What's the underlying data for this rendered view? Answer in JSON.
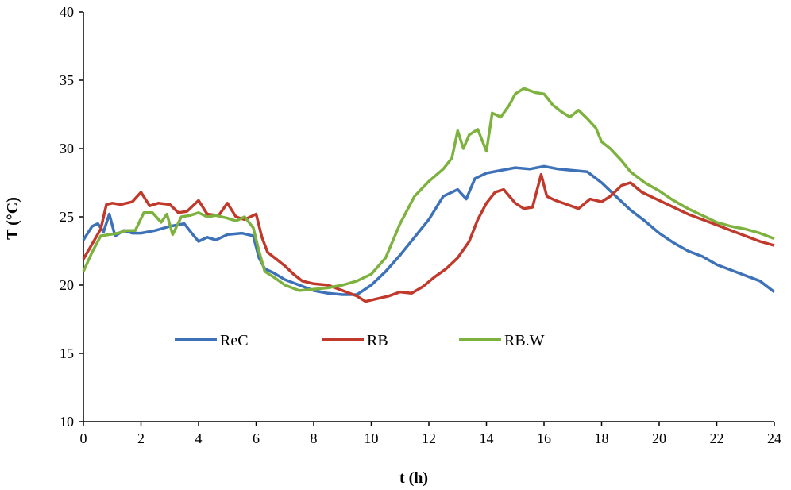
{
  "chart_data": {
    "type": "line",
    "xlabel": "t (h)",
    "ylabel": "T (°C)",
    "xlim": [
      0,
      24
    ],
    "ylim": [
      10,
      40
    ],
    "xticks": [
      0,
      2,
      4,
      6,
      8,
      10,
      12,
      14,
      16,
      18,
      20,
      22,
      24
    ],
    "yticks": [
      10,
      15,
      20,
      25,
      30,
      35,
      40
    ],
    "grid": false,
    "legend_position": "lower-center (inside plot)",
    "series": [
      {
        "name": "ReC",
        "color": "#3d72b8",
        "points": [
          [
            0,
            23.3
          ],
          [
            0.3,
            24.3
          ],
          [
            0.5,
            24.5
          ],
          [
            0.7,
            23.9
          ],
          [
            0.9,
            25.2
          ],
          [
            1.1,
            23.6
          ],
          [
            1.4,
            24.0
          ],
          [
            1.7,
            23.8
          ],
          [
            2.0,
            23.8
          ],
          [
            2.5,
            24.0
          ],
          [
            3.0,
            24.3
          ],
          [
            3.5,
            24.5
          ],
          [
            3.8,
            23.7
          ],
          [
            4.0,
            23.2
          ],
          [
            4.3,
            23.5
          ],
          [
            4.6,
            23.3
          ],
          [
            5.0,
            23.7
          ],
          [
            5.5,
            23.8
          ],
          [
            5.9,
            23.6
          ],
          [
            6.1,
            22.0
          ],
          [
            6.3,
            21.2
          ],
          [
            6.6,
            20.9
          ],
          [
            7.0,
            20.4
          ],
          [
            7.5,
            20.0
          ],
          [
            8.0,
            19.6
          ],
          [
            8.5,
            19.4
          ],
          [
            9.0,
            19.3
          ],
          [
            9.5,
            19.3
          ],
          [
            10.0,
            20.0
          ],
          [
            10.5,
            21.0
          ],
          [
            11.0,
            22.2
          ],
          [
            11.5,
            23.5
          ],
          [
            12.0,
            24.8
          ],
          [
            12.5,
            26.5
          ],
          [
            13.0,
            27.0
          ],
          [
            13.3,
            26.3
          ],
          [
            13.6,
            27.8
          ],
          [
            14.0,
            28.2
          ],
          [
            14.5,
            28.4
          ],
          [
            15.0,
            28.6
          ],
          [
            15.5,
            28.5
          ],
          [
            16.0,
            28.7
          ],
          [
            16.5,
            28.5
          ],
          [
            17.0,
            28.4
          ],
          [
            17.5,
            28.3
          ],
          [
            18.0,
            27.5
          ],
          [
            18.5,
            26.5
          ],
          [
            19.0,
            25.5
          ],
          [
            19.5,
            24.7
          ],
          [
            20.0,
            23.8
          ],
          [
            20.5,
            23.1
          ],
          [
            21.0,
            22.5
          ],
          [
            21.5,
            22.1
          ],
          [
            22.0,
            21.5
          ],
          [
            22.5,
            21.1
          ],
          [
            23.0,
            20.7
          ],
          [
            23.5,
            20.3
          ],
          [
            24.0,
            19.5
          ]
        ]
      },
      {
        "name": "RB",
        "color": "#c0392b",
        "points": [
          [
            0,
            21.9
          ],
          [
            0.3,
            23.0
          ],
          [
            0.6,
            24.1
          ],
          [
            0.8,
            25.9
          ],
          [
            1.0,
            26.0
          ],
          [
            1.3,
            25.9
          ],
          [
            1.7,
            26.1
          ],
          [
            2.0,
            26.8
          ],
          [
            2.3,
            25.8
          ],
          [
            2.6,
            26.0
          ],
          [
            3.0,
            25.9
          ],
          [
            3.3,
            25.3
          ],
          [
            3.6,
            25.4
          ],
          [
            4.0,
            26.2
          ],
          [
            4.3,
            25.2
          ],
          [
            4.7,
            25.1
          ],
          [
            5.0,
            26.0
          ],
          [
            5.3,
            25.0
          ],
          [
            5.6,
            24.8
          ],
          [
            6.0,
            25.2
          ],
          [
            6.2,
            23.5
          ],
          [
            6.4,
            22.4
          ],
          [
            6.7,
            21.9
          ],
          [
            7.0,
            21.4
          ],
          [
            7.3,
            20.8
          ],
          [
            7.6,
            20.3
          ],
          [
            8.0,
            20.1
          ],
          [
            8.5,
            20.0
          ],
          [
            9.0,
            19.6
          ],
          [
            9.5,
            19.2
          ],
          [
            9.8,
            18.8
          ],
          [
            10.2,
            19.0
          ],
          [
            10.6,
            19.2
          ],
          [
            11.0,
            19.5
          ],
          [
            11.4,
            19.4
          ],
          [
            11.8,
            19.9
          ],
          [
            12.2,
            20.6
          ],
          [
            12.6,
            21.2
          ],
          [
            13.0,
            22.0
          ],
          [
            13.4,
            23.2
          ],
          [
            13.7,
            24.8
          ],
          [
            14.0,
            26.0
          ],
          [
            14.3,
            26.8
          ],
          [
            14.6,
            27.0
          ],
          [
            15.0,
            26.0
          ],
          [
            15.3,
            25.6
          ],
          [
            15.6,
            25.7
          ],
          [
            15.9,
            28.1
          ],
          [
            16.1,
            26.5
          ],
          [
            16.4,
            26.2
          ],
          [
            16.8,
            25.9
          ],
          [
            17.2,
            25.6
          ],
          [
            17.6,
            26.3
          ],
          [
            18.0,
            26.1
          ],
          [
            18.3,
            26.5
          ],
          [
            18.7,
            27.3
          ],
          [
            19.0,
            27.5
          ],
          [
            19.4,
            26.8
          ],
          [
            19.8,
            26.4
          ],
          [
            20.2,
            26.0
          ],
          [
            20.6,
            25.6
          ],
          [
            21.0,
            25.2
          ],
          [
            21.5,
            24.8
          ],
          [
            22.0,
            24.4
          ],
          [
            22.5,
            24.0
          ],
          [
            23.0,
            23.6
          ],
          [
            23.5,
            23.2
          ],
          [
            24.0,
            22.9
          ]
        ]
      },
      {
        "name": "RB.W",
        "color": "#7db23e",
        "points": [
          [
            0,
            21.0
          ],
          [
            0.3,
            22.4
          ],
          [
            0.6,
            23.6
          ],
          [
            0.9,
            23.7
          ],
          [
            1.2,
            23.8
          ],
          [
            1.5,
            24.0
          ],
          [
            1.8,
            24.0
          ],
          [
            2.1,
            25.3
          ],
          [
            2.4,
            25.3
          ],
          [
            2.7,
            24.6
          ],
          [
            2.9,
            25.2
          ],
          [
            3.1,
            23.7
          ],
          [
            3.4,
            25.0
          ],
          [
            3.7,
            25.1
          ],
          [
            4.0,
            25.3
          ],
          [
            4.3,
            25.0
          ],
          [
            4.6,
            25.1
          ],
          [
            5.0,
            24.9
          ],
          [
            5.3,
            24.7
          ],
          [
            5.6,
            25.0
          ],
          [
            5.9,
            24.2
          ],
          [
            6.1,
            22.5
          ],
          [
            6.3,
            21.0
          ],
          [
            6.6,
            20.6
          ],
          [
            7.0,
            20.0
          ],
          [
            7.5,
            19.6
          ],
          [
            8.0,
            19.7
          ],
          [
            8.5,
            19.8
          ],
          [
            9.0,
            20.0
          ],
          [
            9.5,
            20.3
          ],
          [
            10.0,
            20.8
          ],
          [
            10.5,
            22.0
          ],
          [
            11.0,
            24.5
          ],
          [
            11.5,
            26.5
          ],
          [
            12.0,
            27.6
          ],
          [
            12.5,
            28.5
          ],
          [
            12.8,
            29.3
          ],
          [
            13.0,
            31.3
          ],
          [
            13.2,
            30.0
          ],
          [
            13.4,
            31.0
          ],
          [
            13.7,
            31.4
          ],
          [
            14.0,
            29.8
          ],
          [
            14.2,
            32.6
          ],
          [
            14.5,
            32.3
          ],
          [
            14.8,
            33.2
          ],
          [
            15.0,
            34.0
          ],
          [
            15.3,
            34.4
          ],
          [
            15.7,
            34.1
          ],
          [
            16.0,
            34.0
          ],
          [
            16.3,
            33.2
          ],
          [
            16.6,
            32.7
          ],
          [
            16.9,
            32.3
          ],
          [
            17.2,
            32.8
          ],
          [
            17.5,
            32.2
          ],
          [
            17.8,
            31.5
          ],
          [
            18.0,
            30.5
          ],
          [
            18.3,
            30.0
          ],
          [
            18.7,
            29.1
          ],
          [
            19.0,
            28.3
          ],
          [
            19.5,
            27.5
          ],
          [
            20.0,
            26.9
          ],
          [
            20.5,
            26.2
          ],
          [
            21.0,
            25.6
          ],
          [
            21.5,
            25.1
          ],
          [
            22.0,
            24.6
          ],
          [
            22.5,
            24.3
          ],
          [
            23.0,
            24.1
          ],
          [
            23.5,
            23.8
          ],
          [
            24.0,
            23.4
          ]
        ]
      }
    ]
  }
}
